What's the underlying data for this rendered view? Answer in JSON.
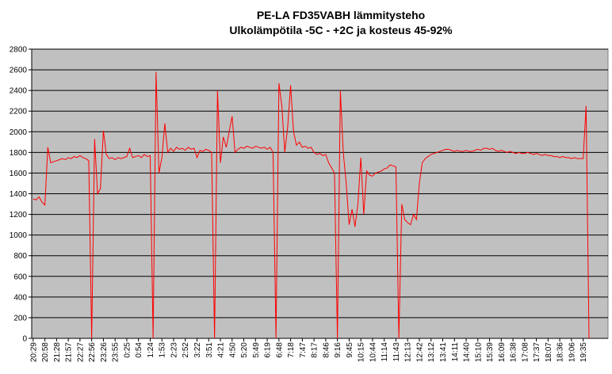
{
  "chart_data": {
    "type": "line",
    "title": "PE-LA FD35VABH lämmitysteho",
    "subtitle": "Ulkolämpötila  -5C - +2C ja kosteus 45-92%",
    "categories": [
      "20:29",
      null,
      null,
      null,
      "20:58",
      null,
      null,
      null,
      "21:28",
      null,
      null,
      null,
      "21:57",
      null,
      null,
      null,
      "22:27",
      null,
      null,
      null,
      "22:56",
      null,
      null,
      null,
      "23:26",
      null,
      null,
      null,
      "23:55",
      null,
      null,
      null,
      "0:25",
      null,
      null,
      null,
      "0:54",
      null,
      null,
      null,
      "1:24",
      null,
      null,
      null,
      "1:53",
      null,
      null,
      null,
      "2:23",
      null,
      null,
      null,
      "2:52",
      null,
      null,
      null,
      "3:22",
      null,
      null,
      null,
      "3:51",
      null,
      null,
      null,
      "4:21",
      null,
      null,
      null,
      "4:50",
      null,
      null,
      null,
      "5:20",
      null,
      null,
      null,
      "5:49",
      null,
      null,
      null,
      "6:19",
      null,
      null,
      null,
      "6:48",
      null,
      null,
      null,
      "7:18",
      null,
      null,
      null,
      "7:47",
      null,
      null,
      null,
      "8:17",
      null,
      null,
      null,
      "8:46",
      null,
      null,
      null,
      "9:16",
      null,
      null,
      null,
      "9:45",
      null,
      null,
      null,
      "10:15",
      null,
      null,
      null,
      "10:44",
      null,
      null,
      null,
      "11:14",
      null,
      null,
      null,
      "11:43",
      null,
      null,
      null,
      "12:13",
      null,
      null,
      null,
      "12:42",
      null,
      null,
      null,
      "13:12",
      null,
      null,
      null,
      "13:41",
      null,
      null,
      null,
      "14:11",
      null,
      null,
      null,
      "14:40",
      null,
      null,
      null,
      "15:10",
      null,
      null,
      null,
      "15:39",
      null,
      null,
      null,
      "16:09",
      null,
      null,
      null,
      "16:38",
      null,
      null,
      null,
      "17:08",
      null,
      null,
      null,
      "17:37",
      null,
      null,
      null,
      "18:07",
      null,
      null,
      null,
      "18:36",
      null,
      null,
      null,
      "19:06",
      null,
      null,
      null,
      "19:35",
      null,
      null,
      null,
      null,
      null,
      null,
      null,
      null
    ],
    "series": [
      {
        "name": "lämmitysteho",
        "color": "#ff0000",
        "values": [
          1350,
          1340,
          1370,
          1320,
          1290,
          1850,
          1700,
          1710,
          1720,
          1730,
          1740,
          1730,
          1750,
          1740,
          1760,
          1750,
          1770,
          1750,
          1740,
          1720,
          0,
          1930,
          1400,
          1450,
          2010,
          1780,
          1740,
          1750,
          1730,
          1750,
          1740,
          1750,
          1760,
          1840,
          1750,
          1760,
          1770,
          1750,
          1780,
          1760,
          1770,
          0,
          2580,
          1600,
          1750,
          2080,
          1800,
          1840,
          1810,
          1850,
          1830,
          1840,
          1820,
          1850,
          1830,
          1840,
          1750,
          1820,
          1810,
          1830,
          1820,
          1800,
          0,
          2400,
          1700,
          1950,
          1850,
          2000,
          2150,
          1800,
          1830,
          1850,
          1840,
          1860,
          1850,
          1840,
          1860,
          1850,
          1840,
          1850,
          1830,
          1850,
          1800,
          0,
          2470,
          2250,
          1800,
          2050,
          2450,
          2000,
          1870,
          1900,
          1850,
          1860,
          1840,
          1850,
          1800,
          1780,
          1790,
          1770,
          1780,
          1700,
          1650,
          1600,
          0,
          2400,
          1800,
          1500,
          1100,
          1250,
          1080,
          1300,
          1750,
          1200,
          1620,
          1580,
          1570,
          1600,
          1610,
          1620,
          1640,
          1650,
          1680,
          1670,
          1660,
          0,
          1300,
          1150,
          1120,
          1100,
          1200,
          1150,
          1500,
          1700,
          1740,
          1760,
          1780,
          1790,
          1800,
          1810,
          1820,
          1830,
          1830,
          1820,
          1810,
          1820,
          1810,
          1810,
          1820,
          1810,
          1810,
          1820,
          1830,
          1820,
          1840,
          1840,
          1830,
          1840,
          1820,
          1810,
          1820,
          1810,
          1800,
          1810,
          1800,
          1790,
          1800,
          1790,
          1790,
          1800,
          1790,
          1780,
          1790,
          1780,
          1770,
          1780,
          1770,
          1770,
          1760,
          1760,
          1750,
          1760,
          1750,
          1750,
          1740,
          1750,
          1740,
          1740,
          1740,
          2250,
          0,
          null,
          null,
          null,
          null,
          null,
          null
        ]
      }
    ],
    "ylim": [
      0,
      2800
    ],
    "yticks": [
      0,
      200,
      400,
      600,
      800,
      1000,
      1200,
      1400,
      1600,
      1800,
      2000,
      2200,
      2400,
      2600,
      2800
    ],
    "grid": true,
    "plot_background": "#c0c0c0"
  }
}
